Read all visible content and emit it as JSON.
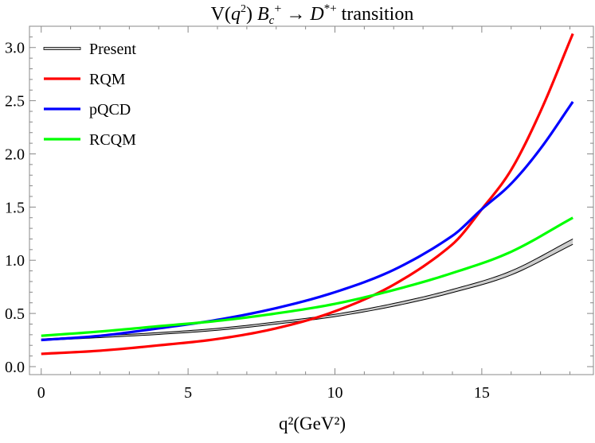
{
  "chart_data": {
    "type": "line",
    "title": "V(q²) B_c⁺ → D*⁺ transition",
    "title_parts": {
      "prefix": "V(",
      "q": "q",
      "sup2": "2",
      "close": ") ",
      "B": "B",
      "c": "c",
      "plus": "+",
      "arrow": " → ",
      "D": "D",
      "star": "*+",
      "suffix": " transition"
    },
    "xlabel": "q²(GeV²)",
    "xlabel_parts": {
      "q": "q",
      "sup": "2",
      "open": "(",
      "gev": "GeV",
      "gevsup": "2",
      "close": ")"
    },
    "ylabel": "",
    "xlim": [
      -0.4,
      18.8
    ],
    "ylim": [
      -0.075,
      3.2
    ],
    "xticks": [
      "0",
      "5",
      "10",
      "15"
    ],
    "xtick_values": [
      0,
      5,
      10,
      15
    ],
    "yticks": [
      "0.0",
      "0.5",
      "1.0",
      "1.5",
      "2.0",
      "2.5",
      "3.0"
    ],
    "ytick_values": [
      0,
      0.5,
      1.0,
      1.5,
      2.0,
      2.5,
      3.0
    ],
    "grid": false,
    "legend_placement": "top-left",
    "series": [
      {
        "name": "Present",
        "color": "#000000",
        "style": "band",
        "band_fill": "#cccccc",
        "x": [
          0,
          2,
          4,
          6,
          8,
          10,
          12,
          14,
          16,
          18.1
        ],
        "lower": [
          0.245,
          0.273,
          0.303,
          0.342,
          0.4,
          0.47,
          0.568,
          0.696,
          0.862,
          1.15
        ],
        "upper": [
          0.26,
          0.29,
          0.32,
          0.36,
          0.42,
          0.492,
          0.594,
          0.726,
          0.9,
          1.2
        ]
      },
      {
        "name": "RQM",
        "color": "#ff0000",
        "x": [
          0,
          2,
          4,
          6,
          8,
          10,
          12,
          14,
          15,
          16,
          17,
          18.1
        ],
        "y": [
          0.12,
          0.15,
          0.2,
          0.26,
          0.36,
          0.52,
          0.77,
          1.15,
          1.48,
          1.85,
          2.4,
          3.13
        ]
      },
      {
        "name": "pQCD",
        "color": "#0000ff",
        "x": [
          0,
          2,
          4,
          6,
          8,
          10,
          12,
          14,
          15,
          16,
          17,
          18.1
        ],
        "y": [
          0.25,
          0.29,
          0.36,
          0.44,
          0.55,
          0.7,
          0.91,
          1.23,
          1.48,
          1.72,
          2.05,
          2.49
        ]
      },
      {
        "name": "RCQM",
        "color": "#00ff00",
        "x": [
          0,
          2,
          4,
          6,
          8,
          10,
          12,
          14,
          16,
          18.1
        ],
        "y": [
          0.29,
          0.33,
          0.38,
          0.43,
          0.5,
          0.59,
          0.72,
          0.88,
          1.08,
          1.4
        ]
      }
    ]
  }
}
